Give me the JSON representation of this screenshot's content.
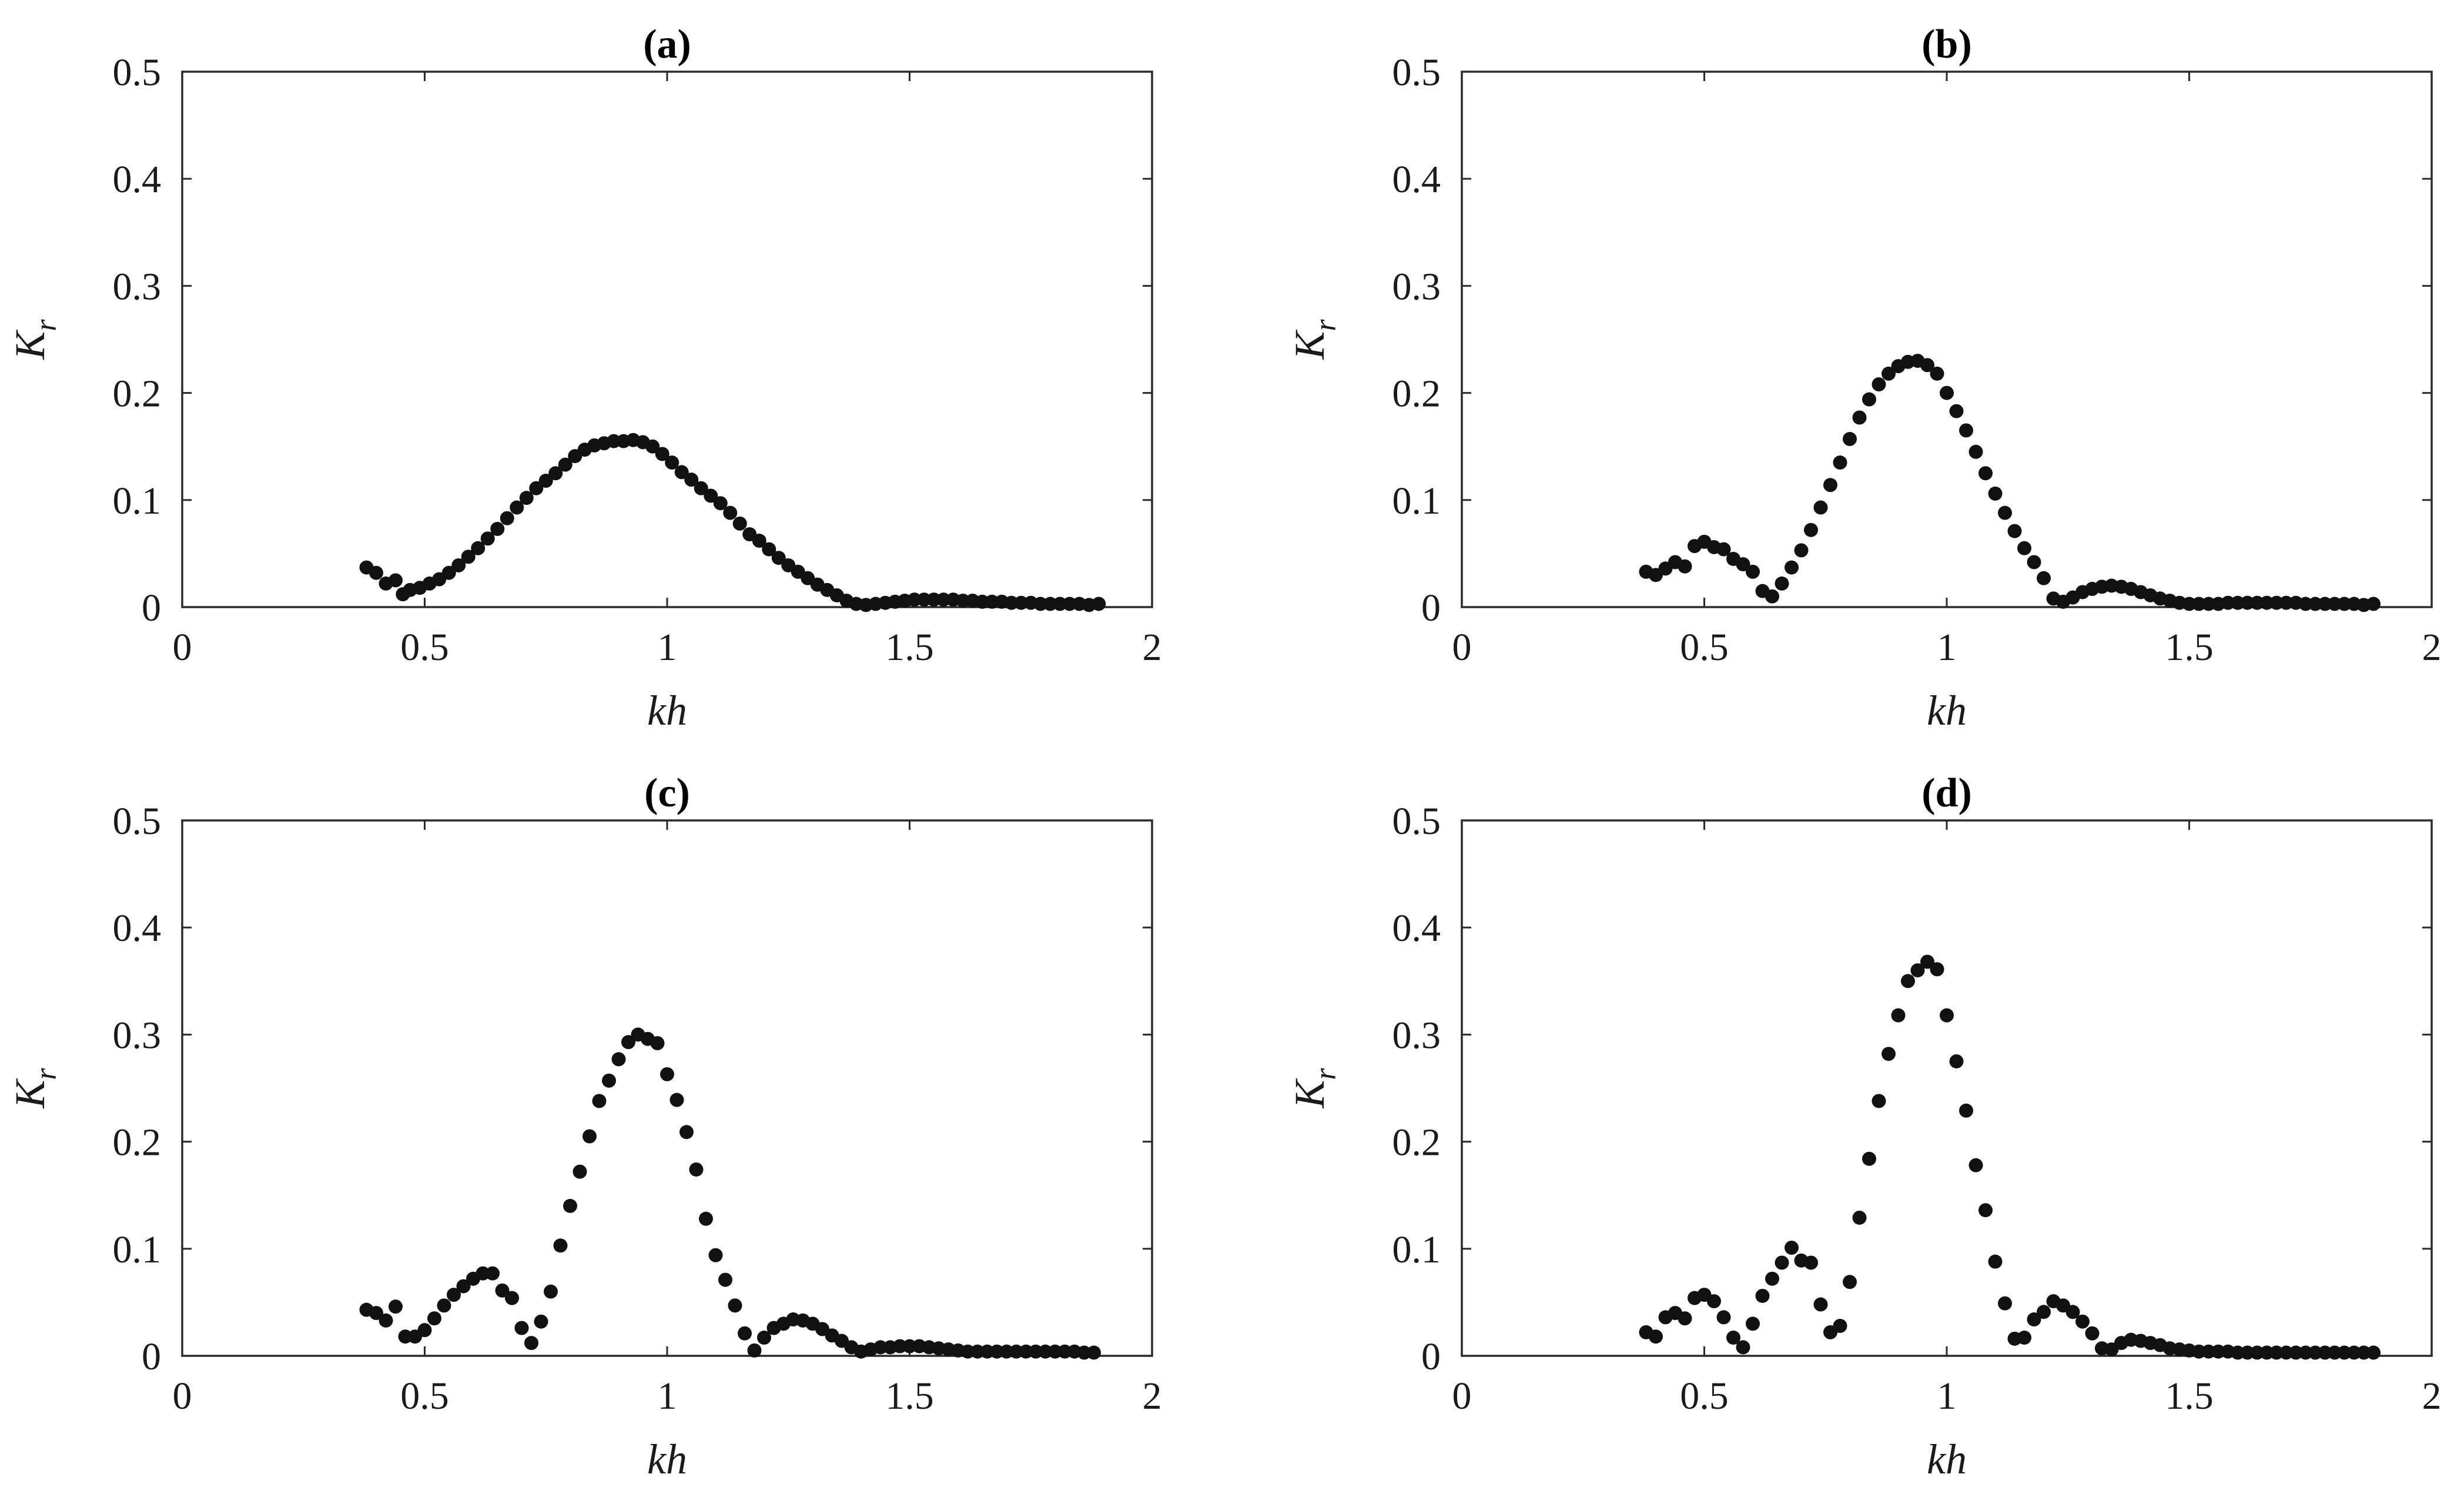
{
  "chart_data": [
    {
      "type": "scatter",
      "title": "(a)",
      "xlabel": "kh",
      "ylabel_main": "K",
      "ylabel_sub": "r",
      "xlim": [
        0,
        2
      ],
      "ylim": [
        0,
        0.5
      ],
      "xticks": [
        "0",
        "0.5",
        "1",
        "1.5",
        "2"
      ],
      "yticks": [
        "0",
        "0.1",
        "0.2",
        "0.3",
        "0.4",
        "0.5"
      ],
      "grid": false,
      "marker_color": "#111111",
      "series": [
        {
          "x": [
            0.38,
            0.4,
            0.42,
            0.44,
            0.455,
            0.47,
            0.49,
            0.51,
            0.53,
            0.55,
            0.57,
            0.59,
            0.61,
            0.63,
            0.65,
            0.67,
            0.69,
            0.71,
            0.73,
            0.75,
            0.77,
            0.79,
            0.81,
            0.83,
            0.85,
            0.87,
            0.89,
            0.91,
            0.93,
            0.95,
            0.97,
            0.99,
            1.01,
            1.03,
            1.05,
            1.07,
            1.09,
            1.11,
            1.13,
            1.15,
            1.17,
            1.19,
            1.21,
            1.23,
            1.25,
            1.27,
            1.29,
            1.31,
            1.33,
            1.35,
            1.37,
            1.39,
            1.41,
            1.43,
            1.45,
            1.47,
            1.49,
            1.51,
            1.53,
            1.55,
            1.57,
            1.59,
            1.61,
            1.63,
            1.65,
            1.67,
            1.69,
            1.71,
            1.73,
            1.75,
            1.77,
            1.79,
            1.81,
            1.83,
            1.85,
            1.87,
            1.89
          ],
          "y": [
            0.037,
            0.032,
            0.022,
            0.025,
            0.012,
            0.016,
            0.018,
            0.022,
            0.026,
            0.032,
            0.039,
            0.047,
            0.055,
            0.064,
            0.073,
            0.083,
            0.093,
            0.102,
            0.111,
            0.118,
            0.125,
            0.133,
            0.141,
            0.147,
            0.151,
            0.153,
            0.155,
            0.155,
            0.156,
            0.154,
            0.15,
            0.143,
            0.135,
            0.126,
            0.119,
            0.111,
            0.104,
            0.097,
            0.088,
            0.078,
            0.068,
            0.062,
            0.054,
            0.046,
            0.039,
            0.033,
            0.027,
            0.021,
            0.016,
            0.011,
            0.006,
            0.003,
            0.002,
            0.003,
            0.004,
            0.005,
            0.006,
            0.007,
            0.007,
            0.007,
            0.007,
            0.007,
            0.006,
            0.006,
            0.005,
            0.005,
            0.005,
            0.004,
            0.004,
            0.004,
            0.003,
            0.003,
            0.003,
            0.003,
            0.003,
            0.002,
            0.003
          ]
        }
      ]
    },
    {
      "type": "scatter",
      "title": "(b)",
      "xlabel": "kh",
      "ylabel_main": "K",
      "ylabel_sub": "r",
      "xlim": [
        0,
        2
      ],
      "ylim": [
        0,
        0.5
      ],
      "xticks": [
        "0",
        "0.5",
        "1",
        "1.5",
        "2"
      ],
      "yticks": [
        "0",
        "0.1",
        "0.2",
        "0.3",
        "0.4",
        "0.5"
      ],
      "grid": false,
      "marker_color": "#111111",
      "series": [
        {
          "x": [
            0.38,
            0.4,
            0.42,
            0.44,
            0.46,
            0.48,
            0.5,
            0.52,
            0.54,
            0.56,
            0.58,
            0.6,
            0.62,
            0.64,
            0.66,
            0.68,
            0.7,
            0.72,
            0.74,
            0.76,
            0.78,
            0.8,
            0.82,
            0.84,
            0.86,
            0.88,
            0.9,
            0.92,
            0.94,
            0.96,
            0.98,
            1.0,
            1.02,
            1.04,
            1.06,
            1.08,
            1.1,
            1.12,
            1.14,
            1.16,
            1.18,
            1.2,
            1.22,
            1.24,
            1.26,
            1.28,
            1.3,
            1.32,
            1.34,
            1.36,
            1.38,
            1.4,
            1.42,
            1.44,
            1.46,
            1.48,
            1.5,
            1.52,
            1.54,
            1.56,
            1.58,
            1.6,
            1.62,
            1.64,
            1.66,
            1.68,
            1.7,
            1.72,
            1.74,
            1.76,
            1.78,
            1.8,
            1.82,
            1.84,
            1.86,
            1.88
          ],
          "y": [
            0.033,
            0.03,
            0.036,
            0.042,
            0.038,
            0.057,
            0.061,
            0.056,
            0.054,
            0.045,
            0.04,
            0.033,
            0.015,
            0.01,
            0.022,
            0.037,
            0.053,
            0.072,
            0.093,
            0.114,
            0.135,
            0.157,
            0.177,
            0.194,
            0.208,
            0.218,
            0.225,
            0.229,
            0.23,
            0.226,
            0.218,
            0.2,
            0.183,
            0.165,
            0.145,
            0.125,
            0.106,
            0.088,
            0.071,
            0.055,
            0.042,
            0.027,
            0.008,
            0.005,
            0.009,
            0.014,
            0.017,
            0.019,
            0.02,
            0.019,
            0.017,
            0.014,
            0.011,
            0.008,
            0.006,
            0.004,
            0.003,
            0.003,
            0.003,
            0.003,
            0.004,
            0.004,
            0.004,
            0.004,
            0.004,
            0.004,
            0.004,
            0.004,
            0.003,
            0.003,
            0.003,
            0.003,
            0.003,
            0.003,
            0.002,
            0.003
          ]
        }
      ]
    },
    {
      "type": "scatter",
      "title": "(c)",
      "xlabel": "kh",
      "ylabel_main": "K",
      "ylabel_sub": "r",
      "xlim": [
        0,
        2
      ],
      "ylim": [
        0,
        0.5
      ],
      "xticks": [
        "0",
        "0.5",
        "1",
        "1.5",
        "2"
      ],
      "yticks": [
        "0",
        "0.1",
        "0.2",
        "0.3",
        "0.4",
        "0.5"
      ],
      "grid": false,
      "marker_color": "#111111",
      "series": [
        {
          "x": [
            0.38,
            0.4,
            0.42,
            0.44,
            0.46,
            0.48,
            0.5,
            0.52,
            0.54,
            0.56,
            0.58,
            0.6,
            0.62,
            0.64,
            0.66,
            0.68,
            0.7,
            0.72,
            0.74,
            0.76,
            0.78,
            0.8,
            0.82,
            0.84,
            0.86,
            0.88,
            0.9,
            0.92,
            0.94,
            0.96,
            0.98,
            1.0,
            1.02,
            1.04,
            1.06,
            1.08,
            1.1,
            1.12,
            1.14,
            1.16,
            1.18,
            1.2,
            1.22,
            1.24,
            1.26,
            1.28,
            1.3,
            1.32,
            1.34,
            1.36,
            1.38,
            1.4,
            1.42,
            1.44,
            1.46,
            1.48,
            1.5,
            1.52,
            1.54,
            1.56,
            1.58,
            1.6,
            1.62,
            1.64,
            1.66,
            1.68,
            1.7,
            1.72,
            1.74,
            1.76,
            1.78,
            1.8,
            1.82,
            1.84,
            1.86,
            1.88
          ],
          "y": [
            0.043,
            0.04,
            0.033,
            0.046,
            0.018,
            0.018,
            0.024,
            0.035,
            0.047,
            0.057,
            0.065,
            0.072,
            0.077,
            0.077,
            0.061,
            0.054,
            0.026,
            0.012,
            0.032,
            0.06,
            0.103,
            0.14,
            0.172,
            0.205,
            0.238,
            0.257,
            0.277,
            0.293,
            0.3,
            0.296,
            0.292,
            0.263,
            0.239,
            0.209,
            0.174,
            0.128,
            0.094,
            0.071,
            0.047,
            0.021,
            0.005,
            0.017,
            0.026,
            0.03,
            0.034,
            0.033,
            0.03,
            0.025,
            0.019,
            0.014,
            0.008,
            0.004,
            0.006,
            0.008,
            0.008,
            0.009,
            0.009,
            0.009,
            0.008,
            0.007,
            0.006,
            0.005,
            0.004,
            0.004,
            0.004,
            0.004,
            0.004,
            0.004,
            0.004,
            0.004,
            0.004,
            0.004,
            0.004,
            0.004,
            0.003,
            0.003
          ]
        }
      ]
    },
    {
      "type": "scatter",
      "title": "(d)",
      "xlabel": "kh",
      "ylabel_main": "K",
      "ylabel_sub": "r",
      "xlim": [
        0,
        2
      ],
      "ylim": [
        0,
        0.5
      ],
      "xticks": [
        "0",
        "0.5",
        "1",
        "1.5",
        "2"
      ],
      "yticks": [
        "0",
        "0.1",
        "0.2",
        "0.3",
        "0.4",
        "0.5"
      ],
      "grid": false,
      "marker_color": "#111111",
      "series": [
        {
          "x": [
            0.38,
            0.4,
            0.42,
            0.44,
            0.46,
            0.48,
            0.5,
            0.52,
            0.54,
            0.56,
            0.58,
            0.6,
            0.62,
            0.64,
            0.66,
            0.68,
            0.7,
            0.72,
            0.74,
            0.76,
            0.78,
            0.8,
            0.82,
            0.84,
            0.86,
            0.88,
            0.9,
            0.92,
            0.94,
            0.96,
            0.98,
            1.0,
            1.02,
            1.04,
            1.06,
            1.08,
            1.1,
            1.12,
            1.14,
            1.16,
            1.18,
            1.2,
            1.22,
            1.24,
            1.26,
            1.28,
            1.3,
            1.32,
            1.34,
            1.36,
            1.38,
            1.4,
            1.42,
            1.44,
            1.46,
            1.48,
            1.5,
            1.52,
            1.54,
            1.56,
            1.58,
            1.6,
            1.62,
            1.64,
            1.66,
            1.68,
            1.7,
            1.72,
            1.74,
            1.76,
            1.78,
            1.8,
            1.82,
            1.84,
            1.86,
            1.88
          ],
          "y": [
            0.022,
            0.018,
            0.036,
            0.04,
            0.035,
            0.054,
            0.057,
            0.051,
            0.036,
            0.017,
            0.008,
            0.03,
            0.056,
            0.072,
            0.087,
            0.101,
            0.089,
            0.087,
            0.048,
            0.022,
            0.028,
            0.069,
            0.129,
            0.184,
            0.238,
            0.282,
            0.318,
            0.35,
            0.36,
            0.368,
            0.361,
            0.318,
            0.275,
            0.229,
            0.178,
            0.136,
            0.088,
            0.049,
            0.016,
            0.017,
            0.034,
            0.041,
            0.051,
            0.047,
            0.041,
            0.032,
            0.021,
            0.007,
            0.006,
            0.012,
            0.015,
            0.014,
            0.012,
            0.01,
            0.007,
            0.006,
            0.005,
            0.004,
            0.004,
            0.004,
            0.004,
            0.003,
            0.003,
            0.003,
            0.003,
            0.003,
            0.003,
            0.003,
            0.003,
            0.003,
            0.003,
            0.003,
            0.003,
            0.003,
            0.003,
            0.003
          ]
        }
      ]
    }
  ]
}
